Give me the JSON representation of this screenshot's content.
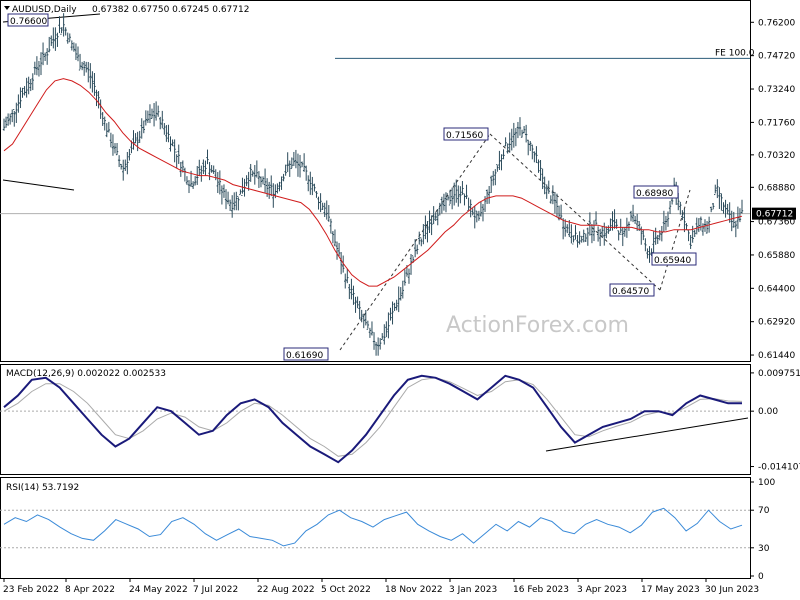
{
  "chart_data": [
    {
      "type": "ohlc",
      "title": "AUDUSD,Daily",
      "ohlc_header": "0.67382 0.67750 0.67245 0.67712",
      "last_price": "0.67712",
      "y_ticks": [
        "0.76200",
        "0.74720",
        "0.73240",
        "0.71760",
        "0.70320",
        "0.68880",
        "0.67360",
        "0.65880",
        "0.64400",
        "0.62920",
        "0.61440"
      ],
      "x_ticks": [
        "23 Feb 2022",
        "8 Apr 2022",
        "24 May 2022",
        "7 Jul 2022",
        "22 Aug 2022",
        "5 Oct 2022",
        "18 Nov 2022",
        "3 Jan 2023",
        "16 Feb 2023",
        "3 Apr 2023",
        "17 May 2023",
        "30 Jun 2023"
      ],
      "ylim": [
        0.6122,
        0.771
      ],
      "series": [
        {
          "values_close": [
            0.7155,
            0.721,
            0.729,
            0.735,
            0.743,
            0.748,
            0.756,
            0.761,
            0.752,
            0.744,
            0.74,
            0.73,
            0.716,
            0.706,
            0.697,
            0.705,
            0.712,
            0.719,
            0.722,
            0.715,
            0.707,
            0.698,
            0.69,
            0.695,
            0.7,
            0.693,
            0.685,
            0.681,
            0.687,
            0.695,
            0.693,
            0.689,
            0.687,
            0.695,
            0.7,
            0.698,
            0.693,
            0.684,
            0.679,
            0.665,
            0.652,
            0.642,
            0.633,
            0.625,
            0.619,
            0.624,
            0.635,
            0.643,
            0.655,
            0.664,
            0.672,
            0.678,
            0.681,
            0.686,
            0.687,
            0.68,
            0.673,
            0.686,
            0.696,
            0.706,
            0.711,
            0.715,
            0.708,
            0.699,
            0.687,
            0.682,
            0.672,
            0.668,
            0.664,
            0.671,
            0.671,
            0.668,
            0.674,
            0.666,
            0.678,
            0.67,
            0.659,
            0.666,
            0.672,
            0.688,
            0.678,
            0.664,
            0.673,
            0.671,
            0.688,
            0.679,
            0.672,
            0.6771
          ]
        },
        {
          "name": "",
          "values_ma": [
            0.705,
            0.708,
            0.714,
            0.72,
            0.726,
            0.732,
            0.736,
            0.737,
            0.736,
            0.734,
            0.731,
            0.727,
            0.722,
            0.718,
            0.713,
            0.709,
            0.706,
            0.704,
            0.702,
            0.7,
            0.698,
            0.696,
            0.695,
            0.694,
            0.694,
            0.693,
            0.692,
            0.69,
            0.689,
            0.688,
            0.687,
            0.686,
            0.685,
            0.684,
            0.683,
            0.682,
            0.679,
            0.674,
            0.668,
            0.661,
            0.655,
            0.65,
            0.647,
            0.645,
            0.645,
            0.647,
            0.649,
            0.652,
            0.655,
            0.658,
            0.661,
            0.665,
            0.669,
            0.672,
            0.676,
            0.679,
            0.682,
            0.684,
            0.685,
            0.685,
            0.685,
            0.684,
            0.682,
            0.68,
            0.678,
            0.676,
            0.674,
            0.673,
            0.672,
            0.672,
            0.672,
            0.671,
            0.671,
            0.671,
            0.671,
            0.67,
            0.67,
            0.669,
            0.669,
            0.67,
            0.67,
            0.67,
            0.671,
            0.672,
            0.673,
            0.674,
            0.675,
            0.676
          ]
        }
      ],
      "annotations": [
        {
          "text": "0.76600",
          "y": 0.766,
          "idx": 1
        },
        {
          "text": "0.71560",
          "y": 0.7156,
          "idx": 50
        },
        {
          "text": "0.61690",
          "y": 0.6169,
          "idx": 33
        },
        {
          "text": "0.68980",
          "y": 0.6898,
          "idx": 75
        },
        {
          "text": "0.65940",
          "y": 0.6594,
          "idx": 75
        },
        {
          "text": "0.64570",
          "y": 0.6457,
          "idx": 70
        }
      ],
      "fe_label": "FE 100.0",
      "fe_level": 0.746,
      "watermark": "ActionForex.com"
    },
    {
      "type": "line",
      "title": "MACD(12,26,9) 0.002022 0.002533",
      "y_ticks": [
        "0.009751",
        "0.00",
        "-0.014107"
      ],
      "ylim": [
        -0.0155,
        0.011
      ],
      "series": [
        {
          "values_macd": [
            0.001,
            0.004,
            0.008,
            0.0085,
            0.006,
            0.002,
            -0.002,
            -0.006,
            -0.009,
            -0.007,
            -0.003,
            0.001,
            0.0,
            -0.003,
            -0.006,
            -0.005,
            -0.001,
            0.002,
            0.003,
            0.001,
            -0.003,
            -0.006,
            -0.009,
            -0.011,
            -0.013,
            -0.01,
            -0.006,
            -0.001,
            0.004,
            0.008,
            0.009,
            0.0085,
            0.007,
            0.005,
            0.003,
            0.006,
            0.009,
            0.008,
            0.006,
            0.001,
            -0.004,
            -0.008,
            -0.006,
            -0.004,
            -0.003,
            -0.002,
            0.0,
            0.0,
            -0.001,
            0.002,
            0.004,
            0.003,
            0.002,
            0.002
          ]
        },
        {
          "values_signal": [
            0.0,
            0.002,
            0.005,
            0.007,
            0.007,
            0.005,
            0.002,
            -0.002,
            -0.006,
            -0.007,
            -0.005,
            -0.002,
            -0.0005,
            -0.0015,
            -0.004,
            -0.005,
            -0.003,
            0.0,
            0.002,
            0.0015,
            -0.001,
            -0.004,
            -0.007,
            -0.009,
            -0.0115,
            -0.011,
            -0.008,
            -0.004,
            0.001,
            0.006,
            0.008,
            0.0085,
            0.0075,
            0.0058,
            0.004,
            0.005,
            0.0075,
            0.008,
            0.0068,
            0.003,
            -0.0015,
            -0.006,
            -0.0065,
            -0.005,
            -0.0038,
            -0.0028,
            -0.001,
            -0.0002,
            -0.0006,
            0.001,
            0.003,
            0.0032,
            0.0026,
            0.0025
          ]
        }
      ]
    },
    {
      "type": "line",
      "title": "RSI(14) 53.7192",
      "y_ticks": [
        "100",
        "70",
        "30",
        "0"
      ],
      "ylim": [
        0,
        100
      ],
      "series": [
        {
          "values_rsi": [
            55,
            62,
            58,
            65,
            60,
            52,
            45,
            40,
            38,
            48,
            60,
            55,
            50,
            42,
            44,
            58,
            62,
            55,
            45,
            38,
            44,
            50,
            42,
            40,
            38,
            32,
            35,
            48,
            55,
            65,
            70,
            62,
            58,
            52,
            60,
            64,
            68,
            55,
            48,
            42,
            38,
            45,
            35,
            45,
            55,
            48,
            58,
            52,
            62,
            58,
            48,
            45,
            55,
            60,
            55,
            52,
            46,
            54,
            68,
            72,
            62,
            48,
            56,
            70,
            58,
            50,
            54
          ]
        }
      ]
    }
  ]
}
